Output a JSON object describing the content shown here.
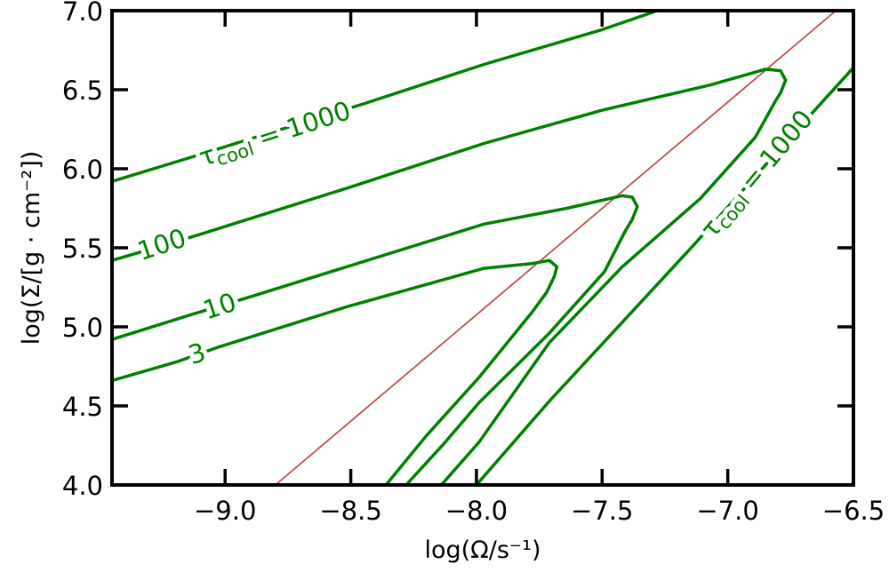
{
  "chart_data": {
    "type": "line",
    "title": "",
    "xlabel": "log(Ω/s⁻¹)",
    "ylabel": "log(Σ/[g · cm⁻²])",
    "xlim": [
      -9.45,
      -6.5
    ],
    "ylim": [
      4.0,
      7.0
    ],
    "xticks": [
      -9.0,
      -8.5,
      -8.0,
      -7.5,
      -7.0,
      -6.5
    ],
    "xtick_labels": [
      "−9.0",
      "−8.5",
      "−8.0",
      "−7.5",
      "−7.0",
      "−6.5"
    ],
    "yticks": [
      4.0,
      4.5,
      5.0,
      5.5,
      6.0,
      6.5,
      7.0
    ],
    "ytick_labels": [
      "4.0",
      "4.5",
      "5.0",
      "5.5",
      "6.0",
      "6.5",
      "7.0"
    ],
    "grid": false,
    "colors": {
      "contour": "#008000",
      "reference_line": "#c0504d"
    },
    "reference_line": {
      "name": "reference",
      "points": [
        [
          -8.8,
          4.0
        ],
        [
          -6.57,
          7.0
        ]
      ]
    },
    "series": [
      {
        "name": "tau_cool=3",
        "points": [
          [
            -9.45,
            4.66
          ],
          [
            -9.19,
            4.78
          ],
          [
            -9.03,
            4.87
          ],
          [
            -8.51,
            5.13
          ],
          [
            -7.97,
            5.37
          ],
          [
            -7.78,
            5.4
          ],
          [
            -7.71,
            5.42
          ],
          [
            -7.68,
            5.38
          ],
          [
            -7.69,
            5.32
          ],
          [
            -7.72,
            5.22
          ],
          [
            -7.78,
            5.09
          ],
          [
            -7.99,
            4.68
          ],
          [
            -8.2,
            4.31
          ],
          [
            -8.36,
            4.0
          ]
        ]
      },
      {
        "name": "tau_cool=10",
        "points": [
          [
            -9.45,
            4.92
          ],
          [
            -9.13,
            5.08
          ],
          [
            -8.9,
            5.19
          ],
          [
            -7.97,
            5.65
          ],
          [
            -7.64,
            5.75
          ],
          [
            -7.42,
            5.83
          ],
          [
            -7.38,
            5.82
          ],
          [
            -7.36,
            5.76
          ],
          [
            -7.38,
            5.68
          ],
          [
            -7.41,
            5.6
          ],
          [
            -7.49,
            5.35
          ],
          [
            -7.71,
            4.96
          ],
          [
            -7.99,
            4.52
          ],
          [
            -8.13,
            4.26
          ],
          [
            -8.28,
            4.0
          ]
        ]
      },
      {
        "name": "tau_cool=100",
        "points": [
          [
            -9.45,
            5.42
          ],
          [
            -9.11,
            5.58
          ],
          [
            -8.51,
            5.88
          ],
          [
            -7.97,
            6.16
          ],
          [
            -7.5,
            6.37
          ],
          [
            -7.07,
            6.53
          ],
          [
            -6.85,
            6.63
          ],
          [
            -6.79,
            6.62
          ],
          [
            -6.77,
            6.56
          ],
          [
            -6.79,
            6.48
          ],
          [
            -6.81,
            6.43
          ],
          [
            -6.89,
            6.2
          ],
          [
            -7.11,
            5.81
          ],
          [
            -7.42,
            5.38
          ],
          [
            -7.71,
            4.9
          ],
          [
            -7.99,
            4.27
          ],
          [
            -8.14,
            4.0
          ]
        ]
      },
      {
        "name": "tau_cool=1000 (upper)",
        "points": [
          [
            -9.45,
            5.92
          ],
          [
            -9.14,
            6.07
          ],
          [
            -8.45,
            6.41
          ],
          [
            -7.97,
            6.66
          ],
          [
            -7.5,
            6.88
          ],
          [
            -7.28,
            7.0
          ]
        ]
      },
      {
        "name": "tau_cool=1000 (lower)",
        "points": [
          [
            -8.0,
            4.0
          ],
          [
            -7.71,
            4.53
          ],
          [
            -7.14,
            5.51
          ],
          [
            -6.66,
            6.36
          ],
          [
            -6.5,
            6.64
          ]
        ]
      }
    ],
    "annotations": [
      {
        "name": "label-3",
        "text": "3",
        "x": -9.11,
        "y": 4.82,
        "angle": -17
      },
      {
        "name": "label-10",
        "text": "10",
        "x": -9.02,
        "y": 5.12,
        "angle": -18
      },
      {
        "name": "label-100",
        "text": "100",
        "x": -9.25,
        "y": 5.51,
        "angle": -18
      },
      {
        "name": "label-1000-upper",
        "symbol": "τ",
        "sub": "cool",
        "text": " = 1000",
        "x": -8.8,
        "y": 6.21,
        "angle": -18
      },
      {
        "name": "label-1000-lower",
        "symbol": "τ",
        "sub": "cool",
        "text": " = 1000",
        "x": -6.88,
        "y": 5.96,
        "angle": -50
      }
    ]
  }
}
